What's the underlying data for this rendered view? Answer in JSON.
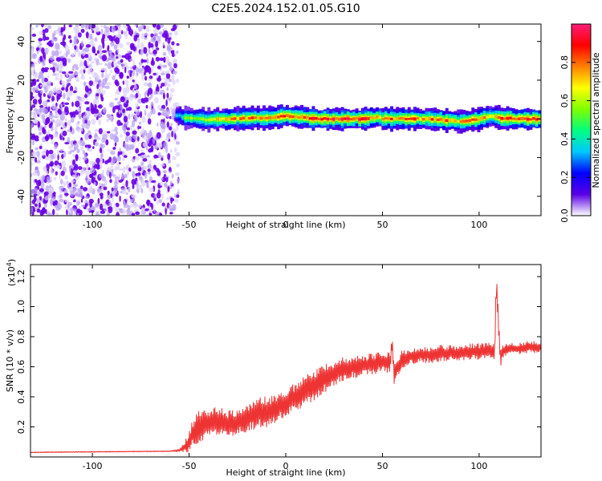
{
  "chart_data": [
    {
      "type": "heatmap",
      "title": "C2E5.2024.152.01.05.G10",
      "xlabel": "Height of straight line (km)",
      "ylabel": "Frequency (Hz)",
      "xlim": [
        -132,
        132
      ],
      "ylim": [
        -50,
        49
      ],
      "xticks": [
        -100,
        -50,
        0,
        50,
        100
      ],
      "yticks": [
        -40,
        -20,
        0,
        20,
        40
      ],
      "colorbar": {
        "label": "Normalized spectral amplitude",
        "range": [
          0,
          1
        ],
        "ticks": [
          "0.0",
          "0.2",
          "0.4",
          "0.6",
          "0.8"
        ],
        "colors": [
          "#ffffff",
          "#5a00e6",
          "#0000ff",
          "#00c8ff",
          "#00ff80",
          "#7fff00",
          "#ffff00",
          "#ff8000",
          "#ff0000",
          "#ff1e78"
        ]
      },
      "noise_region_x": [
        -132,
        -57
      ],
      "signal_band": {
        "x": [
          -57,
          -52,
          -45,
          -40,
          -30,
          -20,
          -10,
          0,
          10,
          20,
          30,
          40,
          47,
          50,
          60,
          70,
          80,
          90,
          100,
          107,
          110,
          120,
          132
        ],
        "center_hz": [
          2,
          0.5,
          0,
          -0.5,
          0,
          0.2,
          0.5,
          1.5,
          0.5,
          0,
          0,
          0,
          1,
          0,
          0,
          0,
          -0.5,
          -1.5,
          0,
          1.5,
          0.5,
          0,
          0
        ],
        "intensity": [
          0.35,
          0.55,
          0.6,
          0.65,
          0.75,
          0.8,
          0.85,
          0.8,
          0.85,
          0.9,
          0.92,
          0.9,
          0.7,
          0.85,
          0.8,
          0.8,
          0.82,
          0.75,
          0.85,
          0.7,
          0.9,
          0.88,
          0.88
        ]
      }
    },
    {
      "type": "line",
      "xlabel": "Height of straight line (km)",
      "ylabel": "SNR (10 * v/v)",
      "y_multiplier": "(x10",
      "y_multiplier_exp": "4",
      "y_multiplier_close": ")",
      "xlim": [
        -132,
        132
      ],
      "ylim": [
        0,
        12800
      ],
      "xticks": [
        -100,
        -50,
        0,
        50,
        100
      ],
      "yticks": [
        2000,
        4000,
        6000,
        8000,
        10000,
        12000
      ],
      "ytick_labels": [
        "0.2",
        "0.4",
        "0.6",
        "0.8",
        "1.0",
        "1.2"
      ],
      "series": [
        {
          "color": "#ee3333",
          "x": [
            -132,
            -120,
            -110,
            -100,
            -90,
            -80,
            -70,
            -60,
            -55,
            -52,
            -50,
            -48,
            -45,
            -40,
            -35,
            -30,
            -25,
            -20,
            -15,
            -10,
            -5,
            0,
            5,
            10,
            15,
            20,
            25,
            30,
            35,
            40,
            45,
            50,
            54,
            55,
            56,
            60,
            65,
            70,
            75,
            80,
            85,
            90,
            95,
            100,
            105,
            108,
            109,
            110,
            111,
            112,
            115,
            120,
            125,
            132
          ],
          "y": [
            300,
            320,
            330,
            340,
            350,
            360,
            370,
            380,
            450,
            700,
            1000,
            1600,
            2000,
            2300,
            2400,
            2200,
            2300,
            2600,
            2900,
            3000,
            3200,
            3600,
            4000,
            4500,
            4800,
            5200,
            5600,
            5800,
            6000,
            6100,
            6200,
            6300,
            6300,
            7500,
            5500,
            6500,
            6700,
            6800,
            6800,
            6900,
            6900,
            6900,
            7000,
            7000,
            7100,
            7000,
            11500,
            9000,
            6500,
            7000,
            7200,
            7200,
            7300,
            7300
          ],
          "noise": [
            30,
            30,
            30,
            30,
            30,
            30,
            30,
            30,
            100,
            500,
            900,
            1200,
            1400,
            1300,
            1200,
            1100,
            1100,
            1200,
            1300,
            1300,
            1200,
            1200,
            1200,
            1500,
            1300,
            1200,
            1100,
            1100,
            1000,
            900,
            900,
            900,
            900,
            1000,
            900,
            800,
            700,
            700,
            700,
            700,
            700,
            700,
            700,
            700,
            700,
            800,
            1500,
            1200,
            800,
            600,
            500,
            500,
            500,
            500
          ]
        }
      ]
    }
  ]
}
